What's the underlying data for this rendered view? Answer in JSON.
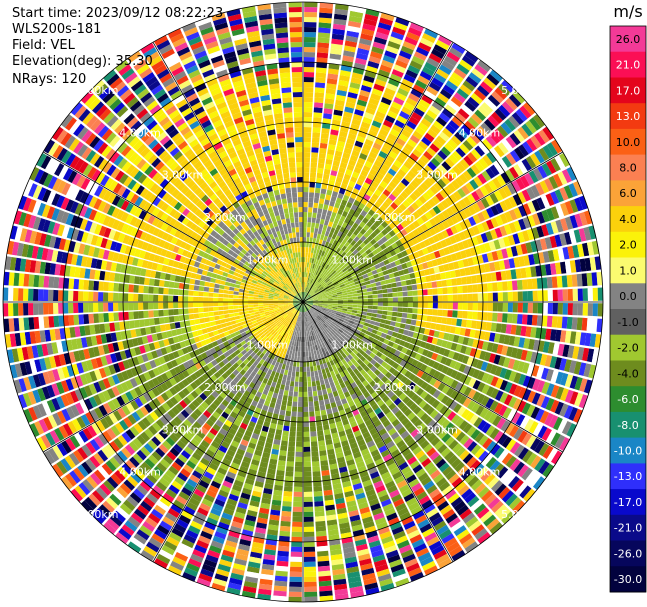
{
  "info": {
    "start_time": "Start time: 2023/09/12 08:22:23",
    "instrument": "WLS200s-181",
    "field": "Field: VEL",
    "elevation": "Elevation(deg): 35.30",
    "nrays": "NRays: 120"
  },
  "chart_data": {
    "type": "ppi",
    "field": "VEL",
    "nrays": 120,
    "elevation_deg": 35.3,
    "range_ring_labels": [
      "1.00km",
      "2.00km",
      "3.00km",
      "4.00km",
      "5.00km"
    ],
    "colorbar": {
      "unit": "m/s",
      "vmin": -30.0,
      "vmax": 30.0,
      "tick_labels": [
        "26.0",
        "21.0",
        "17.0",
        "13.0",
        "10.0",
        "8.0",
        "6.0",
        "4.0",
        "2.0",
        "1.0",
        "0.0",
        "-1.0",
        "-2.0",
        "-4.0",
        "-6.0",
        "-8.0",
        "-10.0",
        "-13.0",
        "-17.0",
        "-21.0",
        "-26.0",
        "-30.0"
      ],
      "colors": [
        "#f33a97",
        "#fb0f55",
        "#e4041c",
        "#f33a11",
        "#fb6015",
        "#fb8052",
        "#fba338",
        "#fbd10c",
        "#fbf20a",
        "#fbfb70",
        "#838383",
        "#606060",
        "#a0c830",
        "#6e8c1e",
        "#2d8d2f",
        "#189070",
        "#1a86c6",
        "#2f2ffb",
        "#0909cc",
        "#0a0a8a",
        "#06065c",
        "#02023e"
      ]
    },
    "grid": true
  }
}
